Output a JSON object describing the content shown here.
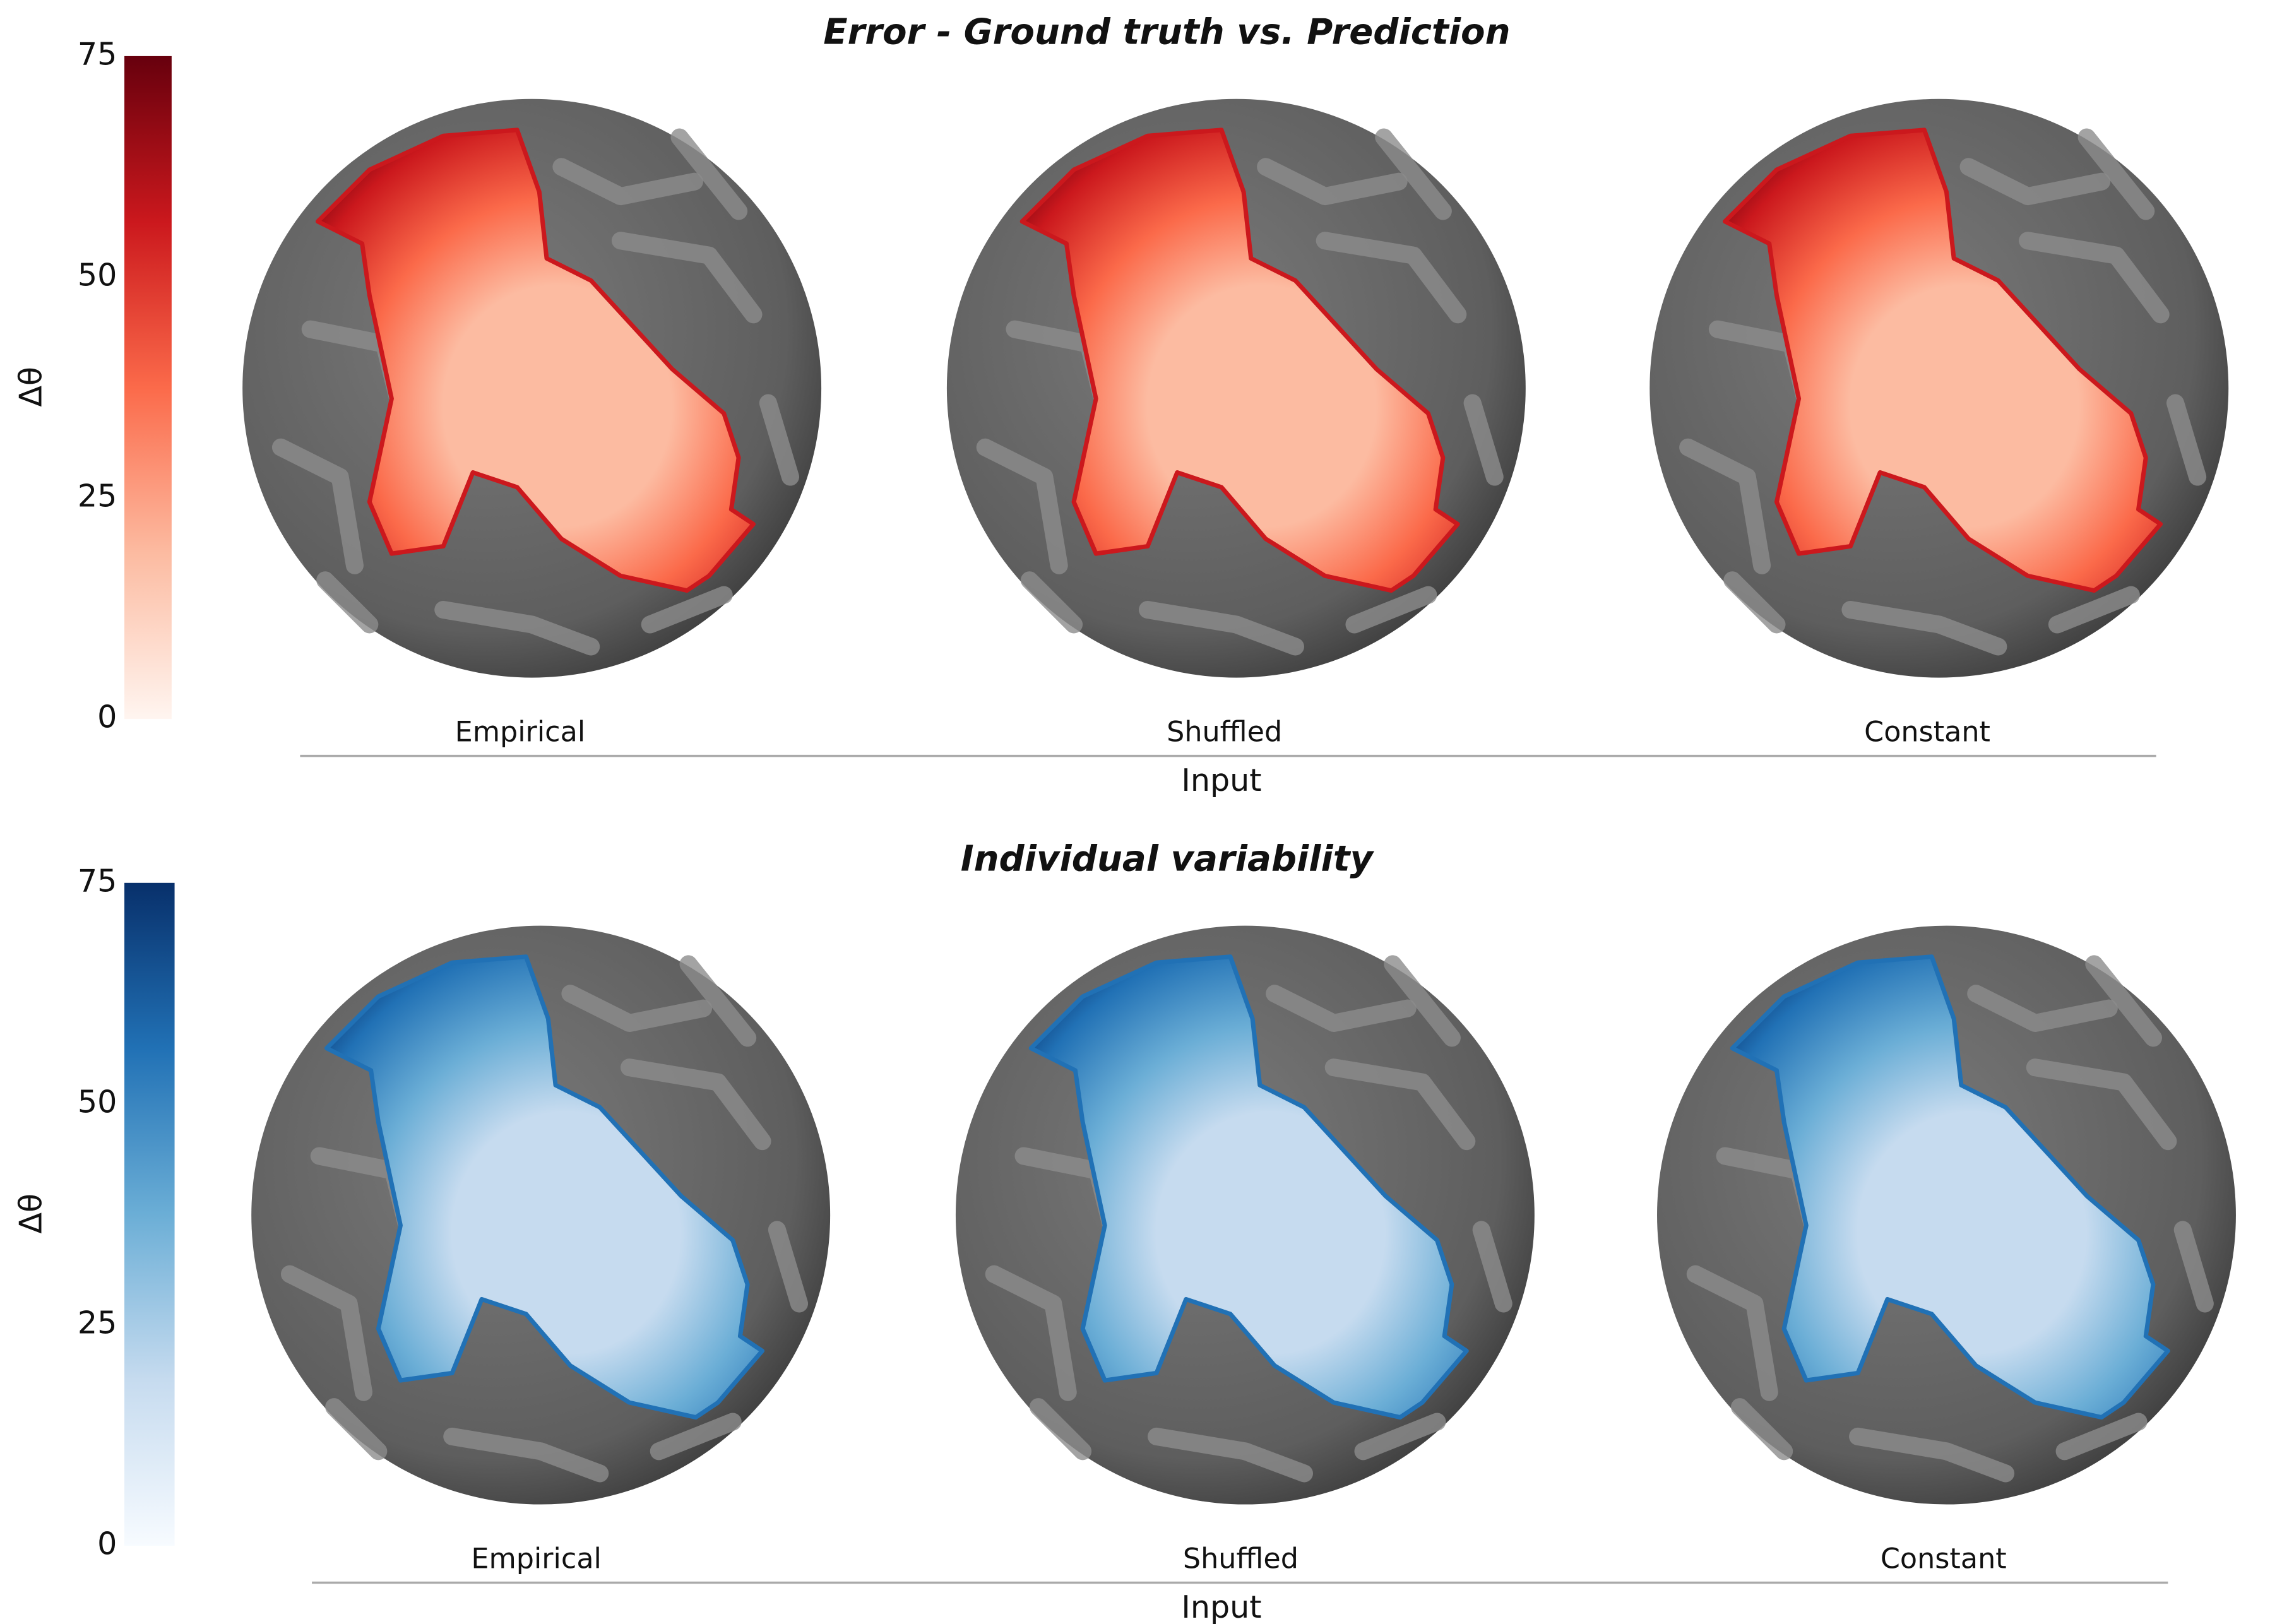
{
  "chart_data": [
    {
      "type": "surface",
      "title": "Error - Ground truth vs. Prediction",
      "categories": [
        "Empirical",
        "Shuffled",
        "Constant"
      ],
      "xlabel": "Input",
      "zlabel": "Δθ",
      "zlim": [
        0,
        75
      ],
      "zticks": [
        0,
        25,
        50,
        75
      ],
      "colors": [
        "#fff5f0",
        "#fcbba1",
        "#fb6a4a",
        "#cb181d",
        "#67000d"
      ]
    },
    {
      "type": "surface",
      "title": "Individual variability",
      "categories": [
        "Empirical",
        "Shuffled",
        "Constant"
      ],
      "xlabel": "Input",
      "zlabel": "Δθ",
      "zlim": [
        0,
        75
      ],
      "zticks": [
        0,
        25,
        50,
        75
      ],
      "colors": [
        "#f7fbff",
        "#c6dbef",
        "#6baed6",
        "#2171b5",
        "#08306b"
      ]
    }
  ]
}
